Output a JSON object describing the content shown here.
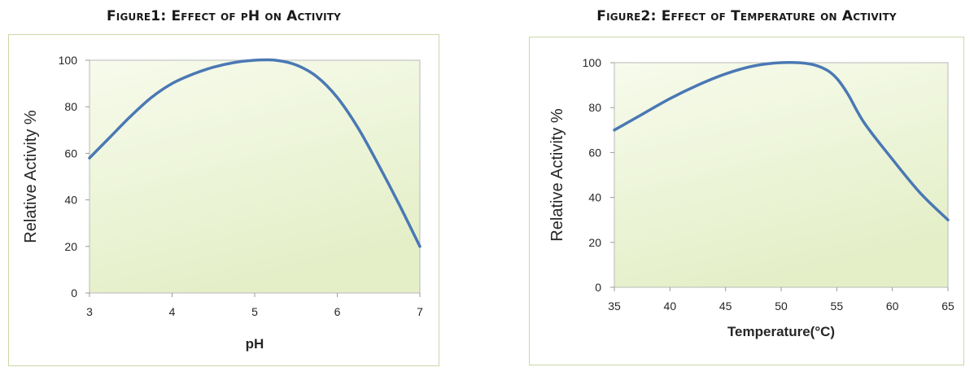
{
  "figure1": {
    "title": "Figure1: Effect of pH on Activity"
  },
  "figure2": {
    "title": "Figure2: Effect of Temperature on Activity"
  },
  "colors": {
    "line": "#4a78b4",
    "plot_bg_top": "#f7fbec",
    "plot_bg_bottom": "#e4efc8",
    "frame": "#c9d9a6",
    "axis": "#9a9a9a"
  },
  "chart_data": [
    {
      "type": "line",
      "title": "Figure1: Effect of pH on Activity",
      "xlabel": "pH",
      "ylabel": "Relative Activity %",
      "xlim": [
        3,
        7
      ],
      "ylim": [
        0,
        100
      ],
      "x_ticks": [
        "3",
        "4",
        "5",
        "6",
        "7"
      ],
      "y_ticks": [
        "0",
        "20",
        "40",
        "60",
        "80",
        "100"
      ],
      "grid": false,
      "series": [
        {
          "x": [
            3,
            3.25,
            3.5,
            3.75,
            4,
            4.25,
            4.5,
            4.75,
            5,
            5.25,
            5.5,
            5.75,
            6,
            6.25,
            6.5,
            6.75,
            7
          ],
          "y": [
            58,
            67,
            76,
            84,
            90,
            94,
            97,
            99,
            100,
            100,
            98,
            93,
            84,
            71,
            55,
            38,
            20
          ]
        }
      ]
    },
    {
      "type": "line",
      "title": "Figure2: Effect of Temperature on Activity",
      "xlabel": "Temperature(°C)",
      "ylabel": "Relative Activity %",
      "xlim": [
        35,
        65
      ],
      "ylim": [
        0,
        100
      ],
      "x_ticks": [
        "35",
        "40",
        "45",
        "50",
        "55",
        "60",
        "65"
      ],
      "y_ticks": [
        "0",
        "20",
        "40",
        "60",
        "80",
        "100"
      ],
      "grid": false,
      "series": [
        {
          "x": [
            35,
            37.5,
            40,
            42.5,
            45,
            47.5,
            50,
            52.5,
            54,
            55,
            56,
            57.5,
            60,
            62.5,
            65
          ],
          "y": [
            70,
            77,
            84,
            90,
            95,
            98.5,
            100,
            99.5,
            97,
            93,
            86,
            73,
            57,
            42,
            30
          ]
        }
      ]
    }
  ]
}
